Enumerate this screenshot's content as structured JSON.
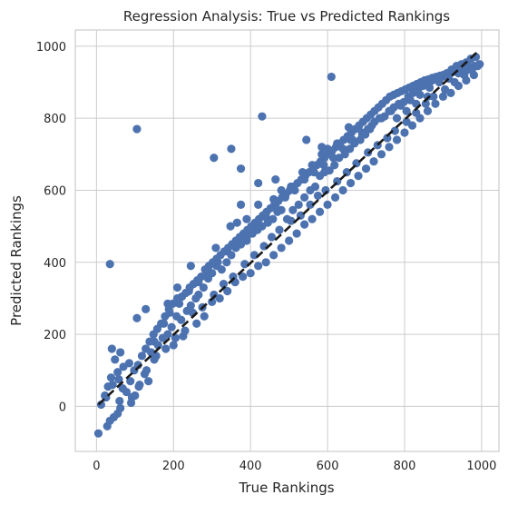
{
  "chart_data": {
    "type": "scatter",
    "title": "Regression Analysis: True vs Predicted Rankings",
    "xlabel": "True Rankings",
    "ylabel": "Predicted Rankings",
    "xlim": [
      -55,
      1045
    ],
    "ylim": [
      -125,
      1045
    ],
    "x_ticks": [
      0,
      200,
      400,
      600,
      800,
      1000
    ],
    "y_ticks": [
      0,
      200,
      400,
      600,
      800,
      1000
    ],
    "grid": true,
    "legend": "none",
    "colors": {
      "points": "#4c72b0",
      "reference_line": "#1a1a1a"
    },
    "reference_line": {
      "style": "dashed",
      "x": [
        5,
        990
      ],
      "y": [
        5,
        985
      ]
    },
    "points": [
      [
        5,
        -75
      ],
      [
        28,
        -55
      ],
      [
        35,
        -40
      ],
      [
        45,
        -30
      ],
      [
        55,
        -20
      ],
      [
        62,
        -5
      ],
      [
        25,
        25
      ],
      [
        30,
        55
      ],
      [
        38,
        80
      ],
      [
        55,
        95
      ],
      [
        70,
        110
      ],
      [
        85,
        120
      ],
      [
        48,
        130
      ],
      [
        60,
        15
      ],
      [
        78,
        40
      ],
      [
        92,
        25
      ],
      [
        100,
        30
      ],
      [
        112,
        60
      ],
      [
        125,
        90
      ],
      [
        135,
        70
      ],
      [
        118,
        140
      ],
      [
        142,
        150
      ],
      [
        150,
        130
      ],
      [
        160,
        170
      ],
      [
        172,
        190
      ],
      [
        185,
        200
      ],
      [
        195,
        220
      ],
      [
        208,
        250
      ],
      [
        220,
        240
      ],
      [
        235,
        265
      ],
      [
        245,
        280
      ],
      [
        258,
        300
      ],
      [
        265,
        310
      ],
      [
        278,
        330
      ],
      [
        290,
        355
      ],
      [
        300,
        370
      ],
      [
        312,
        390
      ],
      [
        325,
        380
      ],
      [
        338,
        400
      ],
      [
        350,
        420
      ],
      [
        362,
        440
      ],
      [
        375,
        450
      ],
      [
        390,
        460
      ],
      [
        405,
        480
      ],
      [
        418,
        490
      ],
      [
        430,
        500
      ],
      [
        445,
        510
      ],
      [
        458,
        520
      ],
      [
        470,
        540
      ],
      [
        480,
        545
      ],
      [
        495,
        520
      ],
      [
        510,
        545
      ],
      [
        525,
        560
      ],
      [
        540,
        580
      ],
      [
        555,
        600
      ],
      [
        568,
        610
      ],
      [
        580,
        640
      ],
      [
        592,
        650
      ],
      [
        605,
        655
      ],
      [
        618,
        670
      ],
      [
        630,
        690
      ],
      [
        645,
        700
      ],
      [
        658,
        715
      ],
      [
        670,
        730
      ],
      [
        685,
        740
      ],
      [
        698,
        755
      ],
      [
        710,
        770
      ],
      [
        722,
        790
      ],
      [
        735,
        800
      ],
      [
        748,
        805
      ],
      [
        760,
        820
      ],
      [
        772,
        830
      ],
      [
        785,
        840
      ],
      [
        798,
        845
      ],
      [
        810,
        860
      ],
      [
        822,
        870
      ],
      [
        835,
        880
      ],
      [
        848,
        890
      ],
      [
        860,
        900
      ],
      [
        872,
        905
      ],
      [
        885,
        910
      ],
      [
        898,
        915
      ],
      [
        910,
        925
      ],
      [
        922,
        935
      ],
      [
        935,
        945
      ],
      [
        948,
        950
      ],
      [
        960,
        955
      ],
      [
        972,
        965
      ],
      [
        985,
        970
      ],
      [
        200,
        170
      ],
      [
        230,
        210
      ],
      [
        260,
        230
      ],
      [
        280,
        250
      ],
      [
        300,
        290
      ],
      [
        320,
        300
      ],
      [
        340,
        320
      ],
      [
        360,
        345
      ],
      [
        380,
        360
      ],
      [
        400,
        370
      ],
      [
        420,
        390
      ],
      [
        440,
        400
      ],
      [
        460,
        420
      ],
      [
        480,
        440
      ],
      [
        500,
        460
      ],
      [
        520,
        480
      ],
      [
        540,
        505
      ],
      [
        560,
        520
      ],
      [
        580,
        540
      ],
      [
        600,
        560
      ],
      [
        620,
        580
      ],
      [
        640,
        600
      ],
      [
        660,
        620
      ],
      [
        680,
        640
      ],
      [
        700,
        660
      ],
      [
        720,
        680
      ],
      [
        740,
        700
      ],
      [
        760,
        720
      ],
      [
        780,
        740
      ],
      [
        800,
        760
      ],
      [
        820,
        780
      ],
      [
        840,
        800
      ],
      [
        860,
        820
      ],
      [
        880,
        840
      ],
      [
        900,
        860
      ],
      [
        920,
        870
      ],
      [
        940,
        890
      ],
      [
        960,
        905
      ],
      [
        980,
        920
      ],
      [
        150,
        180
      ],
      [
        175,
        230
      ],
      [
        190,
        260
      ],
      [
        215,
        285
      ],
      [
        240,
        320
      ],
      [
        265,
        345
      ],
      [
        290,
        370
      ],
      [
        315,
        400
      ],
      [
        340,
        430
      ],
      [
        365,
        455
      ],
      [
        390,
        470
      ],
      [
        415,
        500
      ],
      [
        440,
        525
      ],
      [
        465,
        555
      ],
      [
        490,
        580
      ],
      [
        515,
        600
      ],
      [
        540,
        630
      ],
      [
        565,
        650
      ],
      [
        590,
        670
      ],
      [
        615,
        690
      ],
      [
        640,
        715
      ],
      [
        665,
        740
      ],
      [
        690,
        760
      ],
      [
        715,
        780
      ],
      [
        740,
        800
      ],
      [
        765,
        820
      ],
      [
        790,
        835
      ],
      [
        815,
        850
      ],
      [
        840,
        865
      ],
      [
        865,
        885
      ],
      [
        890,
        900
      ],
      [
        915,
        910
      ],
      [
        940,
        925
      ],
      [
        965,
        935
      ],
      [
        990,
        945
      ],
      [
        12,
        5
      ],
      [
        22,
        30
      ],
      [
        42,
        60
      ],
      [
        58,
        75
      ],
      [
        68,
        50
      ],
      [
        88,
        70
      ],
      [
        98,
        100
      ],
      [
        108,
        115
      ],
      [
        128,
        160
      ],
      [
        138,
        180
      ],
      [
        148,
        200
      ],
      [
        158,
        215
      ],
      [
        168,
        230
      ],
      [
        178,
        250
      ],
      [
        188,
        270
      ],
      [
        198,
        285
      ],
      [
        210,
        300
      ],
      [
        222,
        305
      ],
      [
        232,
        315
      ],
      [
        242,
        330
      ],
      [
        252,
        340
      ],
      [
        262,
        350
      ],
      [
        272,
        360
      ],
      [
        282,
        380
      ],
      [
        292,
        390
      ],
      [
        302,
        400
      ],
      [
        312,
        410
      ],
      [
        322,
        420
      ],
      [
        332,
        430
      ],
      [
        342,
        440
      ],
      [
        352,
        450
      ],
      [
        362,
        460
      ],
      [
        372,
        470
      ],
      [
        382,
        480
      ],
      [
        392,
        490
      ],
      [
        402,
        500
      ],
      [
        412,
        510
      ],
      [
        422,
        520
      ],
      [
        432,
        530
      ],
      [
        442,
        540
      ],
      [
        452,
        550
      ],
      [
        462,
        560
      ],
      [
        472,
        570
      ],
      [
        482,
        580
      ],
      [
        492,
        590
      ],
      [
        502,
        600
      ],
      [
        512,
        610
      ],
      [
        522,
        620
      ],
      [
        532,
        630
      ],
      [
        542,
        640
      ],
      [
        552,
        650
      ],
      [
        562,
        660
      ],
      [
        572,
        670
      ],
      [
        582,
        680
      ],
      [
        592,
        690
      ],
      [
        602,
        700
      ],
      [
        612,
        710
      ],
      [
        622,
        720
      ],
      [
        632,
        730
      ],
      [
        642,
        740
      ],
      [
        652,
        750
      ],
      [
        662,
        760
      ],
      [
        672,
        770
      ],
      [
        682,
        780
      ],
      [
        692,
        790
      ],
      [
        702,
        800
      ],
      [
        712,
        810
      ],
      [
        722,
        820
      ],
      [
        732,
        830
      ],
      [
        742,
        840
      ],
      [
        752,
        850
      ],
      [
        762,
        860
      ],
      [
        772,
        865
      ],
      [
        782,
        870
      ],
      [
        792,
        875
      ],
      [
        802,
        880
      ],
      [
        812,
        885
      ],
      [
        822,
        890
      ],
      [
        832,
        895
      ],
      [
        842,
        900
      ],
      [
        852,
        905
      ],
      [
        862,
        908
      ],
      [
        872,
        912
      ],
      [
        882,
        915
      ],
      [
        892,
        918
      ],
      [
        902,
        921
      ],
      [
        912,
        924
      ],
      [
        922,
        927
      ],
      [
        932,
        930
      ],
      [
        942,
        933
      ],
      [
        952,
        936
      ],
      [
        962,
        939
      ],
      [
        972,
        942
      ],
      [
        982,
        945
      ],
      [
        90,
        10
      ],
      [
        110,
        55
      ],
      [
        130,
        100
      ],
      [
        155,
        140
      ],
      [
        180,
        160
      ],
      [
        205,
        190
      ],
      [
        225,
        195
      ],
      [
        250,
        260
      ],
      [
        275,
        275
      ],
      [
        305,
        310
      ],
      [
        330,
        340
      ],
      [
        355,
        360
      ],
      [
        385,
        395
      ],
      [
        410,
        420
      ],
      [
        435,
        445
      ],
      [
        455,
        470
      ],
      [
        475,
        490
      ],
      [
        505,
        515
      ],
      [
        530,
        530
      ],
      [
        555,
        560
      ],
      [
        575,
        585
      ],
      [
        595,
        600
      ],
      [
        625,
        625
      ],
      [
        650,
        650
      ],
      [
        675,
        675
      ],
      [
        705,
        705
      ],
      [
        730,
        725
      ],
      [
        755,
        745
      ],
      [
        775,
        765
      ],
      [
        805,
        790
      ],
      [
        830,
        815
      ],
      [
        855,
        840
      ],
      [
        875,
        860
      ],
      [
        905,
        880
      ],
      [
        930,
        900
      ],
      [
        955,
        920
      ],
      [
        975,
        935
      ],
      [
        995,
        950
      ],
      [
        40,
        160
      ],
      [
        62,
        150
      ],
      [
        105,
        245
      ],
      [
        128,
        270
      ],
      [
        185,
        285
      ],
      [
        210,
        330
      ],
      [
        245,
        390
      ],
      [
        310,
        440
      ],
      [
        348,
        500
      ],
      [
        365,
        510
      ],
      [
        390,
        520
      ],
      [
        420,
        560
      ],
      [
        460,
        575
      ],
      [
        480,
        600
      ],
      [
        505,
        610
      ],
      [
        535,
        650
      ],
      [
        560,
        670
      ],
      [
        585,
        700
      ],
      [
        600,
        715
      ],
      [
        625,
        730
      ],
      [
        660,
        740
      ],
      [
        690,
        755
      ],
      [
        705,
        770
      ],
      [
        780,
        800
      ],
      [
        805,
        820
      ],
      [
        830,
        840
      ],
      [
        860,
        860
      ],
      [
        105,
        770
      ],
      [
        430,
        805
      ],
      [
        610,
        915
      ],
      [
        350,
        715
      ],
      [
        305,
        690
      ],
      [
        375,
        660
      ],
      [
        35,
        395
      ],
      [
        375,
        560
      ],
      [
        420,
        620
      ],
      [
        465,
        630
      ],
      [
        545,
        740
      ],
      [
        585,
        720
      ],
      [
        655,
        775
      ]
    ]
  }
}
